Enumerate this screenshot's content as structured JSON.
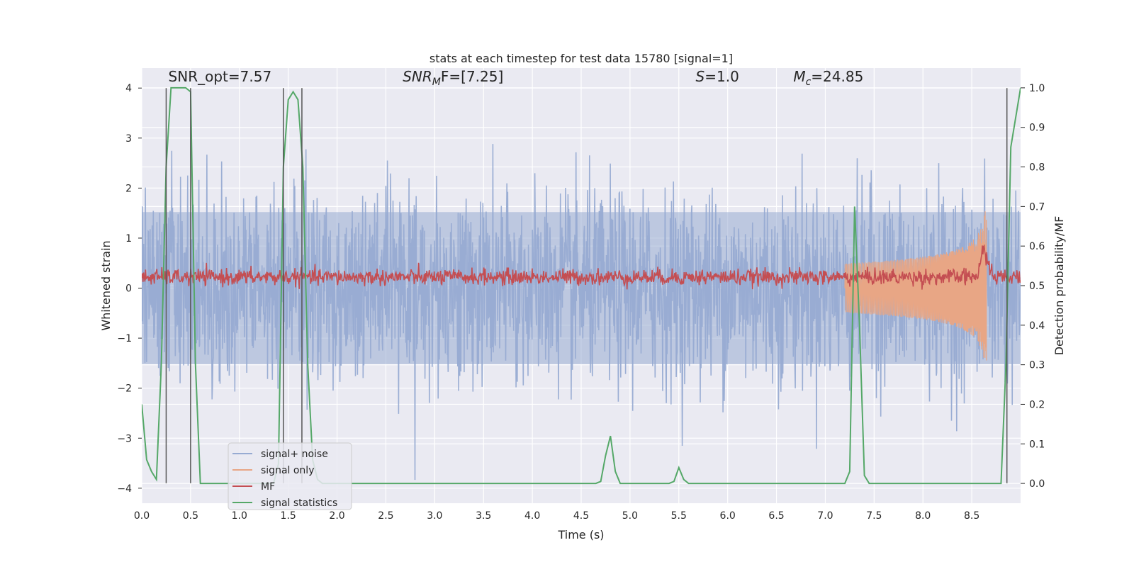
{
  "chart_data": {
    "type": "line",
    "title": "stats at each timestep for test data 15780 [signal=1]",
    "xlabel": "Time (s)",
    "ylabel_left": "Whitened strain",
    "ylabel_right": "Detection probability/MF",
    "xlim": [
      0.0,
      9.0
    ],
    "ylim_left": [
      -4.3,
      4.4
    ],
    "ylim_right": [
      -0.05,
      1.05
    ],
    "x_ticks": [
      "0.0",
      "0.5",
      "1.0",
      "1.5",
      "2.0",
      "2.5",
      "3.0",
      "3.5",
      "4.0",
      "4.5",
      "5.0",
      "5.5",
      "6.0",
      "6.5",
      "7.0",
      "7.5",
      "8.0",
      "8.5"
    ],
    "y_ticks_left": [
      "−4",
      "−3",
      "−2",
      "−1",
      "0",
      "1",
      "2",
      "3",
      "4"
    ],
    "y_ticks_right": [
      "0.0",
      "0.1",
      "0.2",
      "0.3",
      "0.4",
      "0.5",
      "0.6",
      "0.7",
      "0.8",
      "0.9",
      "1.0"
    ],
    "grid": true,
    "legend_position": "lower-left",
    "annotations": [
      {
        "text": "SNR_opt=7.57",
        "x": 0.2,
        "y": 4.1
      },
      {
        "math_main": "SNR",
        "math_sub": "M",
        "math_rest": "F=[7.25]",
        "x": 2.6,
        "y": 4.1
      },
      {
        "math_main": "S",
        "math_rest": "=1.0",
        "x": 5.6,
        "y": 4.1
      },
      {
        "math_main": "M",
        "math_sub": "c",
        "math_rest": "=24.85",
        "x": 6.6,
        "y": 4.1
      }
    ],
    "vertical_markers": [
      0.25,
      0.5,
      1.45,
      1.64,
      8.86
    ],
    "marker_range": [
      -3.9,
      4.0
    ],
    "series": [
      {
        "name": "signal+ noise",
        "color": "#97abd2",
        "axis": "left",
        "kind": "noise",
        "envelope": 1.6,
        "peak": 4.0
      },
      {
        "name": "signal only",
        "color": "#e8a685",
        "axis": "left",
        "kind": "chirp",
        "start": 7.2,
        "end": 8.65,
        "max_amp": 1.8
      },
      {
        "name": "MF",
        "color": "#c44e52",
        "axis": "left",
        "kind": "mf",
        "mean": 0.22,
        "spike_x": 8.63,
        "spike_y": 1.0
      },
      {
        "name": "signal statistics",
        "color": "#55a868",
        "axis": "right",
        "x": [
          0.0,
          0.05,
          0.1,
          0.15,
          0.2,
          0.25,
          0.3,
          0.35,
          0.45,
          0.5,
          0.55,
          0.6,
          0.65,
          1.35,
          1.4,
          1.45,
          1.5,
          1.55,
          1.6,
          1.65,
          1.7,
          1.75,
          1.8,
          1.85,
          1.9,
          4.65,
          4.7,
          4.75,
          4.8,
          4.85,
          4.9,
          5.4,
          5.45,
          5.5,
          5.55,
          5.6,
          7.2,
          7.25,
          7.3,
          7.35,
          7.4,
          7.45,
          8.8,
          8.85,
          8.9,
          9.0
        ],
        "y": [
          0.2,
          0.06,
          0.03,
          0.01,
          0.3,
          0.8,
          1.0,
          1.0,
          1.0,
          0.99,
          0.3,
          0.0,
          0.0,
          0.0,
          0.05,
          0.8,
          0.97,
          0.99,
          0.97,
          0.8,
          0.3,
          0.06,
          0.01,
          0.0,
          0.0,
          0.0,
          0.005,
          0.07,
          0.12,
          0.03,
          0.0,
          0.0,
          0.005,
          0.04,
          0.01,
          0.0,
          0.0,
          0.03,
          0.7,
          0.4,
          0.02,
          0.0,
          0.0,
          0.3,
          0.85,
          1.0
        ]
      }
    ]
  }
}
